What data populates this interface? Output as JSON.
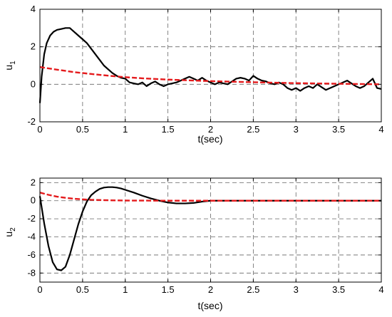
{
  "chart_data": [
    {
      "type": "line",
      "ylabel": "u",
      "ylabel_subscript": "1",
      "xlabel": "t(sec)",
      "xlim": [
        0,
        4
      ],
      "ylim": [
        -2,
        4
      ],
      "xticks": [
        0,
        0.5,
        1,
        1.5,
        2,
        2.5,
        3,
        3.5,
        4
      ],
      "yticks": [
        -2,
        0,
        2,
        4
      ],
      "xtick_labels": [
        "0",
        "0.5",
        "1",
        "1.5",
        "2",
        "2.5",
        "3",
        "3.5",
        "4"
      ],
      "ytick_labels": [
        "-2",
        "0",
        "2",
        "4"
      ],
      "grid": true,
      "series": [
        {
          "color": "#000000",
          "style": "solid",
          "x": [
            0,
            0.02,
            0.05,
            0.08,
            0.12,
            0.16,
            0.2,
            0.25,
            0.3,
            0.35,
            0.4,
            0.45,
            0.5,
            0.55,
            0.6,
            0.65,
            0.7,
            0.75,
            0.8,
            0.85,
            0.9,
            0.95,
            1.0,
            1.05,
            1.1,
            1.15,
            1.2,
            1.25,
            1.3,
            1.35,
            1.4,
            1.45,
            1.5,
            1.55,
            1.6,
            1.65,
            1.7,
            1.75,
            1.8,
            1.85,
            1.9,
            1.95,
            2.0,
            2.05,
            2.1,
            2.15,
            2.2,
            2.25,
            2.3,
            2.35,
            2.4,
            2.45,
            2.5,
            2.55,
            2.6,
            2.65,
            2.7,
            2.75,
            2.8,
            2.85,
            2.9,
            2.95,
            3.0,
            3.05,
            3.1,
            3.15,
            3.2,
            3.25,
            3.3,
            3.35,
            3.4,
            3.45,
            3.5,
            3.55,
            3.6,
            3.65,
            3.7,
            3.75,
            3.8,
            3.85,
            3.9,
            3.95,
            4.0
          ],
          "y": [
            -1.0,
            0.4,
            1.6,
            2.2,
            2.6,
            2.8,
            2.9,
            2.95,
            3.0,
            3.0,
            2.8,
            2.6,
            2.4,
            2.2,
            1.9,
            1.6,
            1.3,
            1.0,
            0.8,
            0.6,
            0.45,
            0.35,
            0.3,
            0.1,
            0.05,
            0.0,
            0.1,
            -0.1,
            0.05,
            0.15,
            0.0,
            -0.1,
            0.0,
            0.05,
            0.1,
            0.2,
            0.3,
            0.4,
            0.3,
            0.2,
            0.35,
            0.2,
            0.1,
            0.0,
            0.1,
            0.05,
            0.0,
            0.15,
            0.3,
            0.35,
            0.3,
            0.2,
            0.45,
            0.3,
            0.2,
            0.15,
            0.05,
            0.0,
            0.1,
            0.0,
            -0.2,
            -0.3,
            -0.2,
            -0.35,
            -0.2,
            -0.1,
            -0.2,
            0.0,
            -0.15,
            -0.3,
            -0.2,
            -0.1,
            0.0,
            0.1,
            0.2,
            0.05,
            -0.1,
            -0.2,
            -0.1,
            0.1,
            0.3,
            -0.2,
            -0.25
          ]
        },
        {
          "color": "#e41a1c",
          "style": "dashed",
          "x": [
            0,
            0.2,
            0.4,
            0.6,
            0.8,
            1.0,
            1.2,
            1.5,
            2.0,
            2.5,
            3.0,
            3.5,
            4.0
          ],
          "y": [
            0.92,
            0.78,
            0.65,
            0.55,
            0.46,
            0.38,
            0.32,
            0.25,
            0.17,
            0.11,
            0.06,
            0.03,
            0.0
          ]
        }
      ]
    },
    {
      "type": "line",
      "ylabel": "u",
      "ylabel_subscript": "2",
      "xlabel": "t(sec)",
      "xlim": [
        0,
        4
      ],
      "ylim": [
        -9,
        2.5
      ],
      "xticks": [
        0,
        0.5,
        1,
        1.5,
        2,
        2.5,
        3,
        3.5,
        4
      ],
      "yticks": [
        -8,
        -6,
        -4,
        -2,
        0,
        2
      ],
      "xtick_labels": [
        "0",
        "0.5",
        "1",
        "1.5",
        "2",
        "2.5",
        "3",
        "3.5",
        "4"
      ],
      "ytick_labels": [
        "-8",
        "-6",
        "-4",
        "-2",
        "0",
        "2"
      ],
      "grid": true,
      "series": [
        {
          "color": "#000000",
          "style": "solid",
          "x": [
            0,
            0.05,
            0.1,
            0.15,
            0.2,
            0.25,
            0.3,
            0.35,
            0.4,
            0.45,
            0.5,
            0.55,
            0.6,
            0.65,
            0.7,
            0.75,
            0.8,
            0.85,
            0.9,
            0.95,
            1.0,
            1.1,
            1.2,
            1.3,
            1.4,
            1.5,
            1.6,
            1.7,
            1.8,
            1.9,
            2.0,
            2.5,
            3.0,
            3.5,
            4.0
          ],
          "y": [
            0.5,
            -2.5,
            -5.0,
            -6.8,
            -7.6,
            -7.7,
            -7.3,
            -6.0,
            -4.3,
            -2.6,
            -1.2,
            -0.1,
            0.6,
            1.0,
            1.3,
            1.45,
            1.5,
            1.5,
            1.45,
            1.35,
            1.2,
            0.9,
            0.55,
            0.25,
            0.0,
            -0.2,
            -0.3,
            -0.3,
            -0.25,
            -0.1,
            0.0,
            0.0,
            0.0,
            0.0,
            0.0
          ]
        },
        {
          "color": "#e41a1c",
          "style": "dashed",
          "x": [
            0,
            0.1,
            0.2,
            0.3,
            0.4,
            0.5,
            0.6,
            0.8,
            1.0,
            1.5,
            2.0,
            3.0,
            4.0
          ],
          "y": [
            0.9,
            0.65,
            0.45,
            0.32,
            0.22,
            0.15,
            0.1,
            0.05,
            0.02,
            0.0,
            0.0,
            0.0,
            0.0
          ]
        }
      ]
    }
  ]
}
